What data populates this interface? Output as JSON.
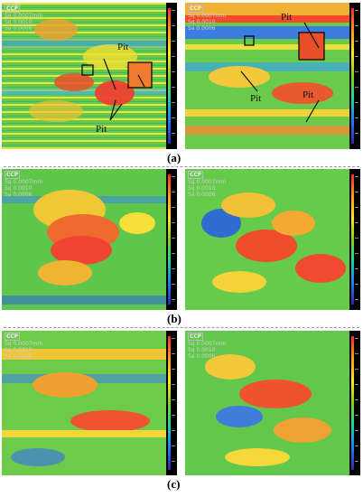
{
  "panel_labels": {
    "a": "(a)",
    "b": "(b)",
    "c": "(c)"
  },
  "pit_labels": [
    "Pit",
    "Pit",
    "Pit",
    "Pit",
    "Pit"
  ],
  "hud": {
    "logo": "CCP",
    "lines": [
      "Sq 0.0007mm",
      "Sq 0.0010",
      "Sa 0.0006"
    ]
  }
}
